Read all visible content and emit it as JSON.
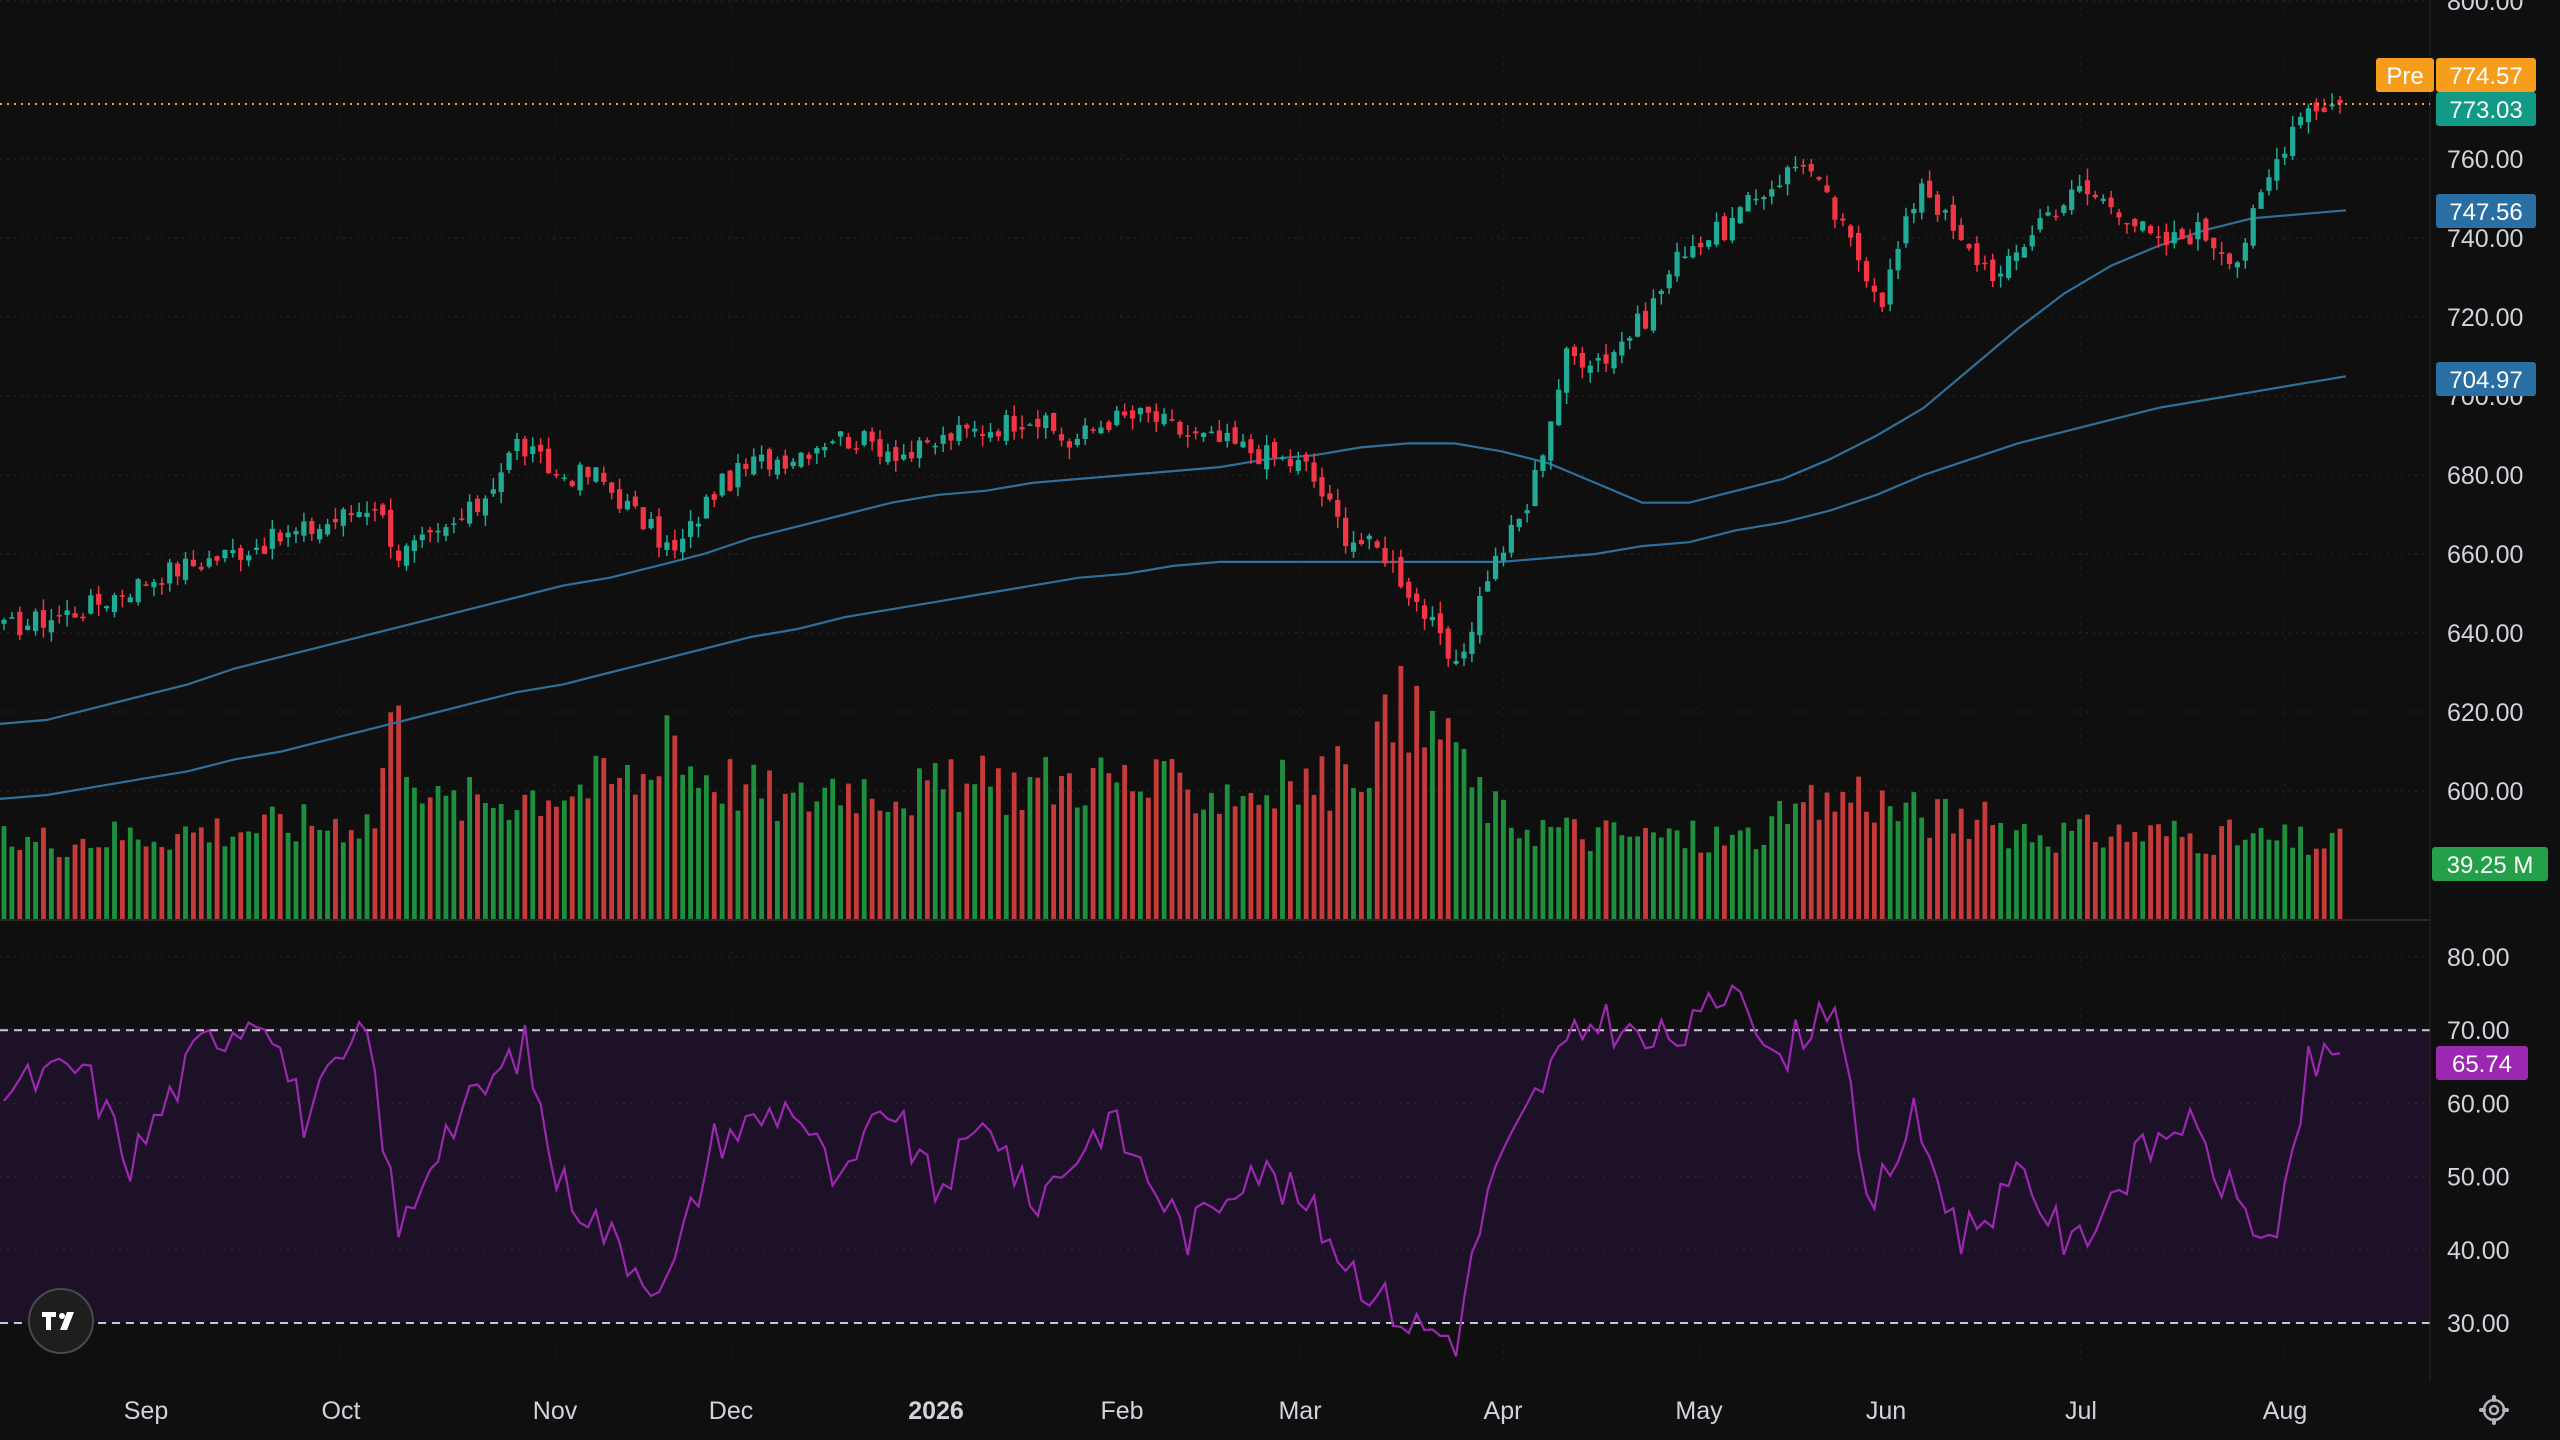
{
  "chart_data": {
    "type": "candlestick",
    "x_labels": [
      "Sep",
      "Oct",
      "Nov",
      "Dec",
      "2026",
      "Feb",
      "Mar",
      "Apr",
      "May",
      "Jun",
      "Jul",
      "Aug"
    ],
    "x_label_bold": [
      false,
      false,
      false,
      false,
      true,
      false,
      false,
      false,
      false,
      false,
      false,
      false
    ],
    "price_axis": {
      "ticks": [
        "800.00",
        "760.00",
        "740.00",
        "720.00",
        "700.00",
        "680.00",
        "660.00",
        "640.00",
        "620.00",
        "600.00"
      ],
      "ylim": [
        588,
        800
      ]
    },
    "rsi_axis": {
      "ticks": [
        "80.00",
        "70.00",
        "60.00",
        "50.00",
        "40.00",
        "30.00"
      ],
      "ylim": [
        25,
        85
      ],
      "overbought": 70,
      "oversold": 30
    },
    "price_tags": {
      "pre_label": "Pre",
      "pre_value": "774.57",
      "last_price": "773.03",
      "ma_fast": "747.56",
      "ma_slow": "704.97",
      "volume": "39.25 M",
      "rsi": "65.74"
    },
    "price_keypoints": [
      [
        0,
        641
      ],
      [
        10,
        646
      ],
      [
        20,
        655
      ],
      [
        30,
        661
      ],
      [
        40,
        667
      ],
      [
        47,
        673
      ],
      [
        50,
        660
      ],
      [
        55,
        664
      ],
      [
        60,
        672
      ],
      [
        65,
        688
      ],
      [
        70,
        680
      ],
      [
        75,
        680
      ],
      [
        80,
        670
      ],
      [
        85,
        660
      ],
      [
        90,
        676
      ],
      [
        95,
        683
      ],
      [
        100,
        685
      ],
      [
        105,
        690
      ],
      [
        110,
        688
      ],
      [
        115,
        685
      ],
      [
        120,
        690
      ],
      [
        125,
        692
      ],
      [
        130,
        695
      ],
      [
        135,
        688
      ],
      [
        140,
        694
      ],
      [
        145,
        695
      ],
      [
        150,
        690
      ],
      [
        155,
        688
      ],
      [
        160,
        685
      ],
      [
        165,
        682
      ],
      [
        170,
        665
      ],
      [
        175,
        660
      ],
      [
        180,
        645
      ],
      [
        184,
        630
      ],
      [
        188,
        655
      ],
      [
        193,
        672
      ],
      [
        198,
        710
      ],
      [
        203,
        710
      ],
      [
        208,
        720
      ],
      [
        213,
        738
      ],
      [
        218,
        742
      ],
      [
        223,
        752
      ],
      [
        228,
        760
      ],
      [
        233,
        742
      ],
      [
        238,
        725
      ],
      [
        243,
        755
      ],
      [
        248,
        738
      ],
      [
        253,
        730
      ],
      [
        258,
        745
      ],
      [
        263,
        752
      ],
      [
        268,
        748
      ],
      [
        273,
        738
      ],
      [
        278,
        742
      ],
      [
        283,
        735
      ],
      [
        288,
        760
      ],
      [
        291,
        773
      ],
      [
        295,
        774
      ]
    ],
    "ma_fast_values": [
      617,
      618,
      621,
      624,
      627,
      631,
      634,
      637,
      640,
      643,
      646,
      649,
      652,
      654,
      657,
      660,
      664,
      667,
      670,
      673,
      675,
      676,
      678,
      679,
      680,
      681,
      682,
      684,
      685,
      687,
      688,
      688,
      686,
      683,
      678,
      673,
      673,
      676,
      679,
      684,
      690,
      697,
      707,
      717,
      726,
      733,
      738,
      742,
      745,
      746,
      747
    ],
    "ma_slow_values": [
      598,
      599,
      601,
      603,
      605,
      608,
      610,
      613,
      616,
      619,
      622,
      625,
      627,
      630,
      633,
      636,
      639,
      641,
      644,
      646,
      648,
      650,
      652,
      654,
      655,
      657,
      658,
      658,
      658,
      658,
      658,
      658,
      658,
      659,
      660,
      662,
      663,
      666,
      668,
      671,
      675,
      680,
      684,
      688,
      691,
      694,
      697,
      699,
      701,
      703,
      705
    ],
    "volume_keypoints": [
      [
        0,
        27
      ],
      [
        47,
        35
      ],
      [
        49,
        72
      ],
      [
        55,
        40
      ],
      [
        82,
        50
      ],
      [
        84,
        75
      ],
      [
        86,
        55
      ],
      [
        100,
        40
      ],
      [
        105,
        48
      ],
      [
        116,
        45
      ],
      [
        140,
        50
      ],
      [
        145,
        46
      ],
      [
        160,
        45
      ],
      [
        170,
        50
      ],
      [
        178,
        75
      ],
      [
        180,
        62
      ],
      [
        183,
        72
      ],
      [
        185,
        50
      ],
      [
        190,
        35
      ],
      [
        200,
        30
      ],
      [
        220,
        28
      ],
      [
        235,
        45
      ],
      [
        240,
        38
      ],
      [
        260,
        30
      ],
      [
        275,
        30
      ],
      [
        285,
        28
      ],
      [
        296,
        26
      ]
    ],
    "rsi_keypoints": [
      [
        0,
        62
      ],
      [
        10,
        65
      ],
      [
        16,
        52
      ],
      [
        25,
        68
      ],
      [
        33,
        73
      ],
      [
        38,
        58
      ],
      [
        46,
        70
      ],
      [
        50,
        42
      ],
      [
        55,
        55
      ],
      [
        66,
        68
      ],
      [
        70,
        50
      ],
      [
        80,
        38
      ],
      [
        84,
        35
      ],
      [
        90,
        55
      ],
      [
        100,
        60
      ],
      [
        106,
        48
      ],
      [
        112,
        60
      ],
      [
        118,
        48
      ],
      [
        125,
        58
      ],
      [
        130,
        46
      ],
      [
        140,
        58
      ],
      [
        150,
        42
      ],
      [
        158,
        52
      ],
      [
        165,
        46
      ],
      [
        172,
        36
      ],
      [
        178,
        30
      ],
      [
        184,
        28
      ],
      [
        188,
        48
      ],
      [
        196,
        65
      ],
      [
        202,
        72
      ],
      [
        208,
        68
      ],
      [
        214,
        70
      ],
      [
        220,
        78
      ],
      [
        224,
        65
      ],
      [
        232,
        75
      ],
      [
        236,
        45
      ],
      [
        242,
        58
      ],
      [
        248,
        42
      ],
      [
        256,
        50
      ],
      [
        262,
        40
      ],
      [
        270,
        52
      ],
      [
        276,
        58
      ],
      [
        282,
        48
      ],
      [
        288,
        40
      ],
      [
        292,
        65
      ],
      [
        296,
        66
      ]
    ]
  }
}
